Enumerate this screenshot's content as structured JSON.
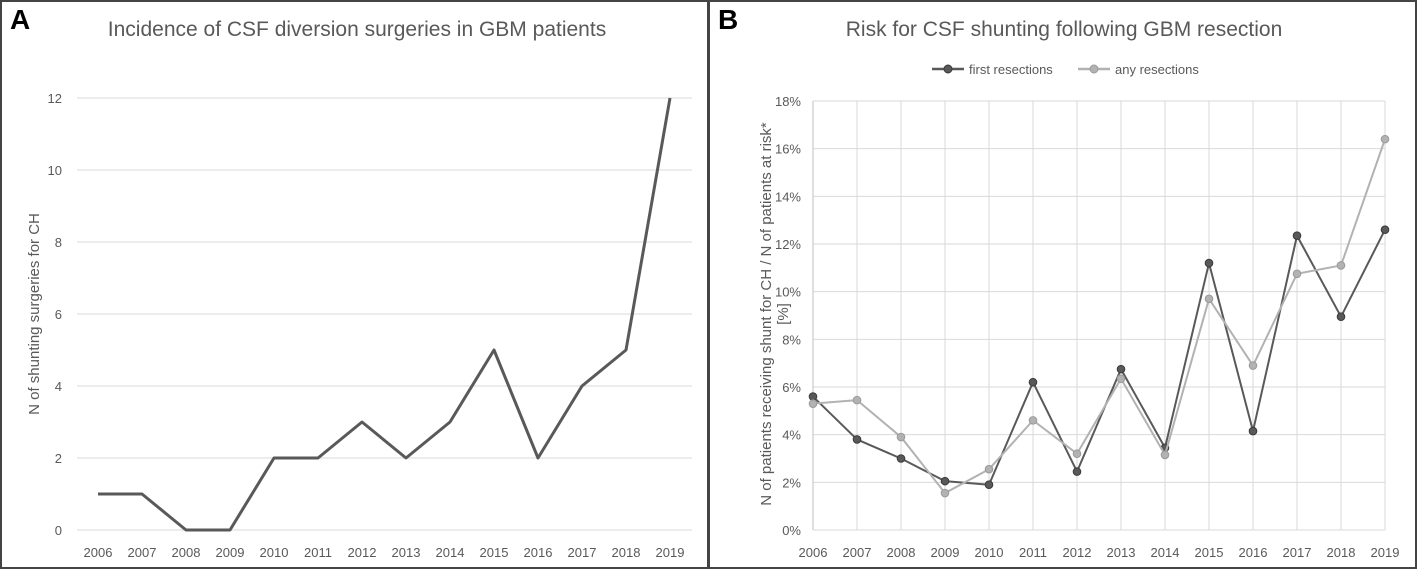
{
  "colors": {
    "series_dark": "#595959",
    "series_light": "#b2b2b2",
    "gridline": "#d9d9d9",
    "text": "#595959",
    "border": "#444444"
  },
  "chart_data": [
    {
      "panel_label": "A",
      "type": "line",
      "title": "Incidence of CSF diversion surgeries in GBM patients",
      "xlabel": "",
      "ylabel": "N of shunting surgeries for CH",
      "categories": [
        "2006",
        "2007",
        "2008",
        "2009",
        "2010",
        "2011",
        "2012",
        "2013",
        "2014",
        "2015",
        "2016",
        "2017",
        "2018",
        "2019"
      ],
      "series": [
        {
          "name": "shunting surgeries",
          "values": [
            1,
            1,
            0,
            0,
            2,
            2,
            3,
            2,
            3,
            5,
            2,
            4,
            5,
            12
          ]
        }
      ],
      "ylim": [
        0,
        12
      ],
      "yticks": [
        0,
        2,
        4,
        6,
        8,
        10,
        12
      ],
      "ytick_labels": [
        "0",
        "2",
        "4",
        "6",
        "8",
        "10",
        "12"
      ],
      "grid": true,
      "legend": "none"
    },
    {
      "panel_label": "B",
      "type": "line",
      "title": "Risk for CSF shunting following GBM resection",
      "xlabel": "",
      "ylabel_lines": [
        "N of patients receiving shunt for CH / N of patients at risk*",
        "[%]"
      ],
      "categories": [
        "2006",
        "2007",
        "2008",
        "2009",
        "2010",
        "2011",
        "2012",
        "2013",
        "2014",
        "2015",
        "2016",
        "2017",
        "2018",
        "2019"
      ],
      "series": [
        {
          "name": "first resections",
          "values": [
            5.6,
            3.8,
            3.0,
            2.05,
            1.9,
            6.2,
            2.45,
            6.75,
            3.45,
            11.2,
            4.15,
            12.35,
            8.95,
            12.6
          ]
        },
        {
          "name": "any resections",
          "values": [
            5.3,
            5.45,
            3.9,
            1.55,
            2.55,
            4.6,
            3.2,
            6.35,
            3.15,
            9.7,
            6.9,
            10.75,
            11.1,
            16.4
          ]
        }
      ],
      "ylim": [
        0,
        18
      ],
      "yticks": [
        0,
        2,
        4,
        6,
        8,
        10,
        12,
        14,
        16,
        18
      ],
      "ytick_labels": [
        "0%",
        "2%",
        "4%",
        "6%",
        "8%",
        "10%",
        "12%",
        "14%",
        "16%",
        "18%"
      ],
      "grid": true,
      "legend": "top-center"
    }
  ]
}
